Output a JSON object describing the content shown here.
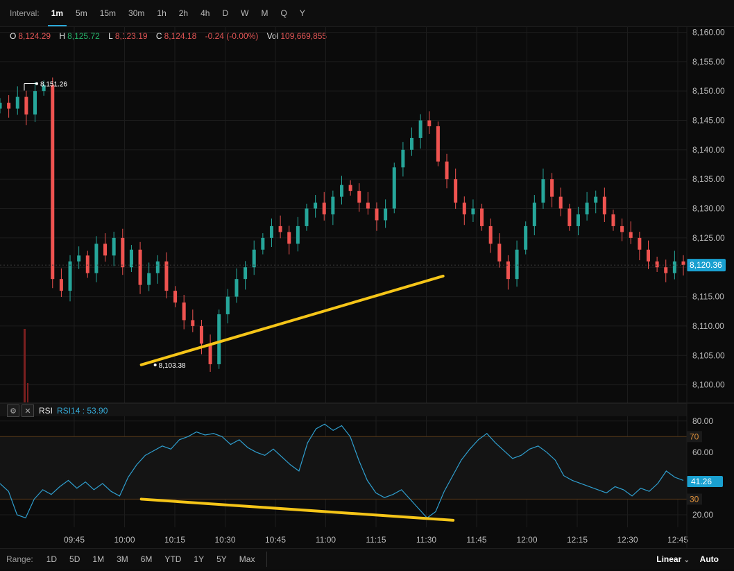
{
  "interval": {
    "label": "Interval:",
    "options": [
      "1m",
      "5m",
      "15m",
      "30m",
      "1h",
      "2h",
      "4h",
      "D",
      "W",
      "M",
      "Q",
      "Y"
    ],
    "active": "1m"
  },
  "ohlc": {
    "o_label": "O",
    "o": "8,124.29",
    "h_label": "H",
    "h": "8,125.72",
    "l_label": "L",
    "l": "8,123.19",
    "c_label": "C",
    "c": "8,124.18",
    "change": "-0.24 (-0.00%)",
    "vol_label": "Vol",
    "vol": "109,669,855"
  },
  "rsi_header": {
    "name": "RSI",
    "value": "RSI14 : 53.90"
  },
  "range": {
    "label": "Range:",
    "options": [
      "1D",
      "5D",
      "1M",
      "3M",
      "6M",
      "YTD",
      "1Y",
      "5Y",
      "Max"
    ],
    "scale_mode": "Linear",
    "auto": "Auto"
  },
  "colors": {
    "up": "#26a69a",
    "down": "#ef5350",
    "rsi_line": "#2f9fcf",
    "trend": "#f5c518",
    "price_tag": "#1aa0d0"
  },
  "chart_data": [
    {
      "type": "candlestick",
      "x_ticks": [
        "09:45",
        "10:00",
        "10:15",
        "10:30",
        "10:45",
        "11:00",
        "11:15",
        "11:30",
        "11:45",
        "12:00",
        "12:15",
        "12:30",
        "12:45"
      ],
      "y_ticks": [
        "8,100.00",
        "8,105.00",
        "8,110.00",
        "8,115.00",
        "8,120.00",
        "8,125.00",
        "8,130.00",
        "8,135.00",
        "8,140.00",
        "8,145.00",
        "8,150.00",
        "8,155.00",
        "8,160.00"
      ],
      "ylim": [
        8097,
        8161
      ],
      "last_price": "8,120.36",
      "last_value": 8120.36,
      "high_label": "8,151.26",
      "high_value": 8151.26,
      "low_label": "8,103.38",
      "low_value": 8103.38,
      "close_path": [
        8148,
        8147,
        8149,
        8146,
        8150,
        8151,
        8118,
        8116,
        8121,
        8122,
        8119,
        8124,
        8122,
        8125,
        8120,
        8123,
        8117,
        8119,
        8121,
        8116,
        8114,
        8111,
        8110,
        8107,
        8103.5,
        8112,
        8115,
        8118,
        8120,
        8123,
        8125,
        8127,
        8126,
        8124,
        8127,
        8130,
        8131,
        8129,
        8132,
        8134,
        8133,
        8131,
        8130,
        8128,
        8130,
        8137,
        8140,
        8142,
        8145,
        8144,
        8138,
        8135,
        8131,
        8129,
        8130,
        8127,
        8124,
        8121,
        8118,
        8123,
        8127,
        8131,
        8135,
        8132,
        8130,
        8127,
        8129,
        8131,
        8132,
        8129,
        8127,
        8126,
        8125,
        8123,
        8121,
        8120,
        8119,
        8121,
        8120.4
      ],
      "trendline": {
        "from": {
          "t": "10:05",
          "price": 8103.4
        },
        "to": {
          "t": "11:35",
          "price": 8118.5
        }
      }
    },
    {
      "type": "line",
      "name": "RSI14",
      "y_ticks": [
        "20.00",
        "60.00",
        "80.00"
      ],
      "levels": [
        {
          "label": "70",
          "value": 70
        },
        {
          "label": "30",
          "value": 30
        }
      ],
      "ylim": [
        12,
        83
      ],
      "last_value_label": "41.26",
      "last_value": 41.26,
      "values": [
        40,
        35,
        20,
        18,
        30,
        36,
        33,
        38,
        42,
        37,
        41,
        36,
        40,
        35,
        32,
        44,
        52,
        58,
        61,
        64,
        62,
        68,
        70,
        73,
        71,
        72,
        70,
        65,
        68,
        63,
        60,
        58,
        62,
        57,
        52,
        48,
        66,
        75,
        78,
        74,
        77,
        70,
        55,
        42,
        34,
        31,
        33,
        36,
        30,
        24,
        18,
        22,
        35,
        45,
        55,
        62,
        68,
        72,
        66,
        61,
        56,
        58,
        62,
        64,
        60,
        55,
        45,
        42,
        40,
        38,
        36,
        34,
        38,
        36,
        32,
        37,
        35,
        40,
        48,
        44,
        42
      ]
    }
  ]
}
